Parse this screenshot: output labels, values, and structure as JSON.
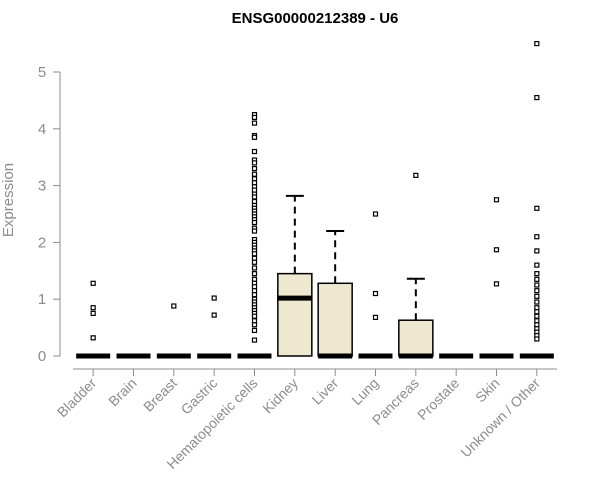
{
  "chart_data": {
    "type": "boxplot",
    "title": "ENSG00000212389 - U6",
    "ylabel": "Expression",
    "xlabel": "",
    "ylim": [
      0,
      5.5
    ],
    "yticks": [
      0,
      1,
      2,
      3,
      4,
      5
    ],
    "grid": false,
    "colors": {
      "box_fill": "#eee8d0",
      "box_stroke": "#000000",
      "axis": "#8c8c8c",
      "text": "#8c8c8c",
      "title": "#000000"
    },
    "categories": [
      "Bladder",
      "Brain",
      "Breast",
      "Gastric",
      "Hematopoietic cells",
      "Kidney",
      "Liver",
      "Lung",
      "Pancreas",
      "Prostate",
      "Skin",
      "Unknown / Other"
    ],
    "boxes": [
      {
        "category": "Bladder",
        "q1": 0,
        "median": 0,
        "q3": 0,
        "whisker_low": 0,
        "whisker_high": 0,
        "outliers": [
          1.28,
          0.85,
          0.75,
          0.32
        ]
      },
      {
        "category": "Brain",
        "q1": 0,
        "median": 0,
        "q3": 0,
        "whisker_low": 0,
        "whisker_high": 0,
        "outliers": []
      },
      {
        "category": "Breast",
        "q1": 0,
        "median": 0,
        "q3": 0,
        "whisker_low": 0,
        "whisker_high": 0,
        "outliers": [
          0.88
        ]
      },
      {
        "category": "Gastric",
        "q1": 0,
        "median": 0,
        "q3": 0,
        "whisker_low": 0,
        "whisker_high": 0,
        "outliers": [
          1.02,
          0.72
        ]
      },
      {
        "category": "Hematopoietic cells",
        "q1": 0,
        "median": 0,
        "q3": 0,
        "whisker_low": 0,
        "whisker_high": 0,
        "outliers": [
          4.25,
          4.2,
          4.1,
          3.88,
          3.85,
          3.6,
          3.45,
          3.4,
          3.3,
          3.2,
          3.12,
          3.05,
          2.98,
          2.92,
          2.85,
          2.8,
          2.72,
          2.65,
          2.6,
          2.55,
          2.5,
          2.45,
          2.4,
          2.35,
          2.25,
          2.2,
          2.05,
          2.0,
          1.95,
          1.9,
          1.85,
          1.8,
          1.72,
          1.65,
          1.55,
          1.45,
          1.35,
          1.28,
          1.22,
          1.15,
          1.08,
          1.0,
          0.95,
          0.9,
          0.85,
          0.8,
          0.75,
          0.7,
          0.62,
          0.55,
          0.45,
          0.28
        ]
      },
      {
        "category": "Kidney",
        "q1": 0,
        "median": 1.02,
        "q3": 1.45,
        "whisker_low": 0,
        "whisker_high": 2.82,
        "outliers": []
      },
      {
        "category": "Liver",
        "q1": 0,
        "median": 0,
        "q3": 1.28,
        "whisker_low": 0,
        "whisker_high": 2.2,
        "outliers": []
      },
      {
        "category": "Lung",
        "q1": 0,
        "median": 0,
        "q3": 0,
        "whisker_low": 0,
        "whisker_high": 0,
        "outliers": [
          2.5,
          1.1,
          0.68
        ]
      },
      {
        "category": "Pancreas",
        "q1": 0,
        "median": 0,
        "q3": 0.63,
        "whisker_low": 0,
        "whisker_high": 1.36,
        "outliers": [
          3.18
        ]
      },
      {
        "category": "Prostate",
        "q1": 0,
        "median": 0,
        "q3": 0,
        "whisker_low": 0,
        "whisker_high": 0,
        "outliers": []
      },
      {
        "category": "Skin",
        "q1": 0,
        "median": 0,
        "q3": 0,
        "whisker_low": 0,
        "whisker_high": 0,
        "outliers": [
          2.75,
          1.87,
          1.27
        ]
      },
      {
        "category": "Unknown / Other",
        "q1": 0,
        "median": 0,
        "q3": 0,
        "whisker_low": 0,
        "whisker_high": 0,
        "outliers": [
          5.5,
          4.55,
          2.6,
          2.1,
          1.85,
          1.6,
          1.45,
          1.35,
          1.25,
          1.15,
          1.05,
          0.95,
          0.85,
          0.78,
          0.7,
          0.62,
          0.55,
          0.48,
          0.42,
          0.36,
          0.3
        ]
      }
    ]
  }
}
